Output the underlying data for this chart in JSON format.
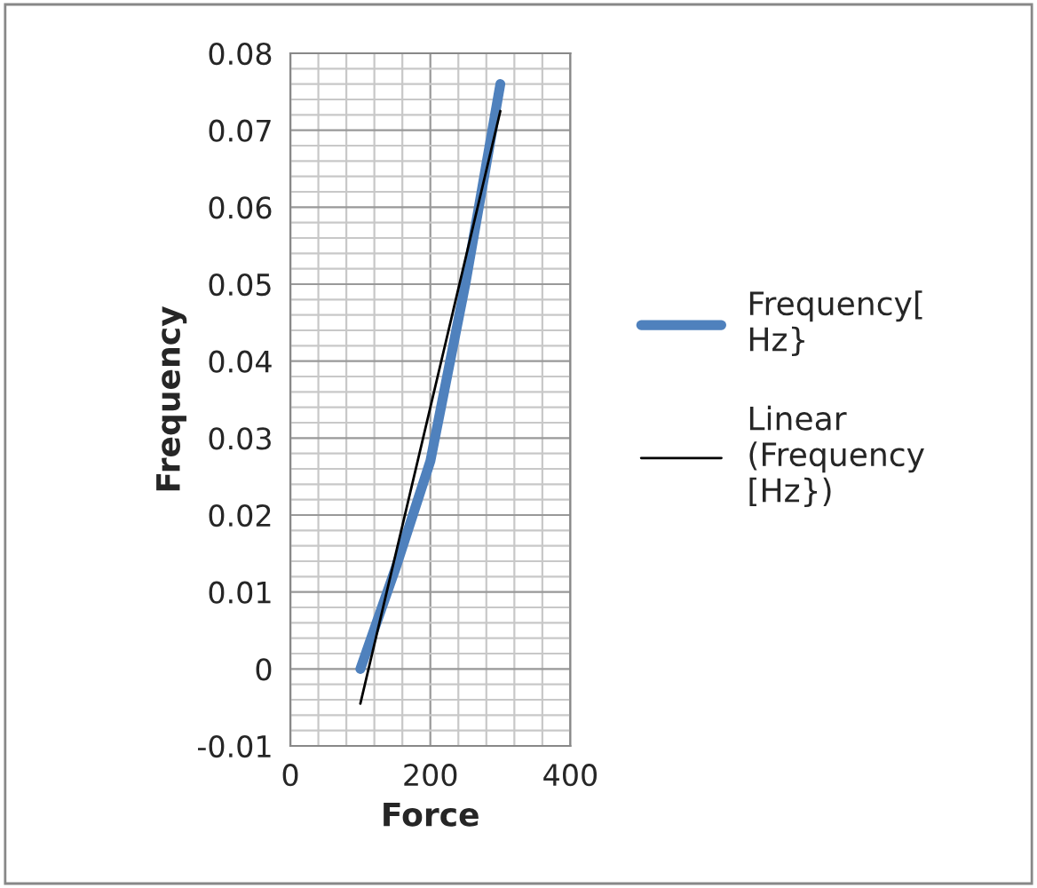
{
  "chart_data": {
    "type": "line",
    "xlabel": "Force",
    "ylabel": "Frequency",
    "x": [
      100,
      150,
      200,
      250,
      300
    ],
    "series": [
      {
        "name": "Frequency[\nHz}",
        "color": "#4f81bd",
        "values": [
          0,
          0.013,
          0.027,
          0.05,
          0.076
        ]
      },
      {
        "name": "Linear\n(Frequency\n[Hz})",
        "color": "#000000",
        "type": "line",
        "x": [
          100,
          300
        ],
        "values": [
          -0.0045,
          0.0725
        ]
      }
    ],
    "xlim": [
      0,
      400
    ],
    "xticks": [
      0,
      200,
      400
    ],
    "ylim": [
      -0.01,
      0.08
    ],
    "yticks": [
      {
        "value": -0.01,
        "label": "-0.01"
      },
      0,
      0.01,
      0.02,
      0.03,
      0.04,
      0.05,
      0.06,
      0.07,
      0.08
    ],
    "grid": true,
    "legend": "right",
    "marker": "none",
    "line_style": "solid"
  }
}
